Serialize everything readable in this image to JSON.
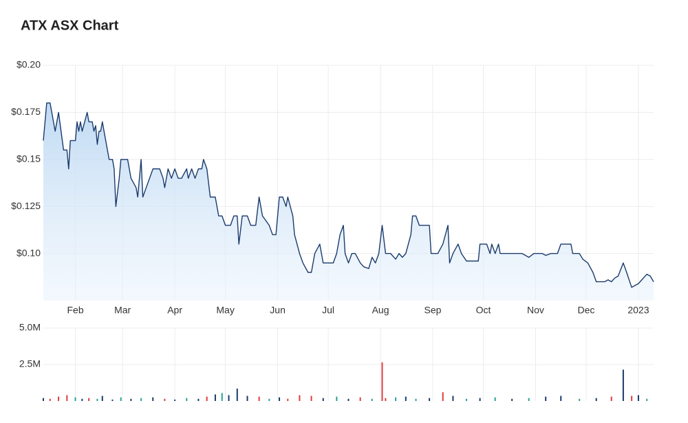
{
  "chart_data": [
    {
      "type": "line",
      "title": "ATX ASX Chart",
      "x": [
        12,
        14,
        16,
        19,
        21,
        24,
        26,
        27,
        28,
        31,
        32,
        33,
        34,
        35,
        38,
        39,
        41,
        42,
        43,
        44,
        45,
        46,
        47,
        48,
        51,
        53,
        54,
        55,
        57,
        58,
        62,
        64,
        67,
        68,
        70,
        71,
        73,
        75,
        77,
        81,
        83,
        84,
        86,
        88,
        90,
        92,
        94,
        97,
        98,
        100,
        102,
        104,
        106,
        107,
        109,
        111,
        114,
        116,
        118,
        120,
        123,
        125,
        127,
        128,
        130,
        133,
        135,
        138,
        140,
        142,
        146,
        148,
        150,
        152,
        154,
        156,
        157,
        160,
        161,
        164,
        166,
        169,
        171,
        173,
        176,
        178,
        181,
        184,
        186,
        188,
        190,
        191,
        193,
        195,
        197,
        200,
        202,
        205,
        207,
        209,
        211,
        213,
        215,
        218,
        221,
        223,
        225,
        227,
        230,
        231,
        233,
        235,
        241,
        242,
        246,
        249,
        252,
        253,
        255,
        258,
        260,
        263,
        270,
        271,
        275,
        277,
        278,
        280,
        282,
        283,
        288,
        296,
        300,
        303,
        308,
        310,
        313,
        315,
        317,
        319,
        325,
        326,
        330,
        332,
        335,
        338,
        340,
        345,
        347,
        349,
        351,
        353,
        356,
        358,
        361,
        365,
        370,
        372,
        374
      ],
      "series": [
        {
          "color": "#1a3a6b",
          "values": [
            0.16,
            0.18,
            0.18,
            0.165,
            0.175,
            0.155,
            0.155,
            0.145,
            0.16,
            0.16,
            0.17,
            0.165,
            0.17,
            0.165,
            0.175,
            0.17,
            0.17,
            0.165,
            0.168,
            0.158,
            0.165,
            0.165,
            0.17,
            0.165,
            0.15,
            0.15,
            0.145,
            0.125,
            0.14,
            0.15,
            0.15,
            0.14,
            0.135,
            0.13,
            0.15,
            0.13,
            0.135,
            0.14,
            0.145,
            0.145,
            0.14,
            0.135,
            0.145,
            0.14,
            0.145,
            0.14,
            0.14,
            0.145,
            0.14,
            0.145,
            0.14,
            0.145,
            0.145,
            0.15,
            0.145,
            0.13,
            0.13,
            0.12,
            0.12,
            0.115,
            0.115,
            0.12,
            0.12,
            0.105,
            0.12,
            0.12,
            0.115,
            0.115,
            0.13,
            0.12,
            0.115,
            0.11,
            0.11,
            0.13,
            0.13,
            0.125,
            0.13,
            0.12,
            0.11,
            0.1,
            0.095,
            0.09,
            0.09,
            0.1,
            0.105,
            0.095,
            0.095,
            0.095,
            0.1,
            0.11,
            0.115,
            0.1,
            0.095,
            0.1,
            0.1,
            0.095,
            0.093,
            0.092,
            0.098,
            0.095,
            0.1,
            0.115,
            0.1,
            0.1,
            0.097,
            0.1,
            0.098,
            0.1,
            0.11,
            0.12,
            0.12,
            0.115,
            0.115,
            0.1,
            0.1,
            0.105,
            0.115,
            0.095,
            0.1,
            0.105,
            0.1,
            0.096,
            0.096,
            0.105,
            0.105,
            0.1,
            0.105,
            0.1,
            0.105,
            0.1,
            0.1,
            0.1,
            0.098,
            0.1,
            0.1,
            0.099,
            0.1,
            0.1,
            0.1,
            0.105,
            0.105,
            0.1,
            0.1,
            0.097,
            0.095,
            0.09,
            0.085,
            0.085,
            0.086,
            0.085,
            0.087,
            0.088,
            0.095,
            0.09,
            0.082,
            0.084,
            0.089,
            0.088,
            0.085
          ]
        }
      ],
      "xlim": [
        12,
        374
      ],
      "xticks": [
        {
          "value": 31,
          "label": "Feb"
        },
        {
          "value": 59,
          "label": "Mar"
        },
        {
          "value": 90,
          "label": "Apr"
        },
        {
          "value": 120,
          "label": "May"
        },
        {
          "value": 151,
          "label": "Jun"
        },
        {
          "value": 181,
          "label": "Jul"
        },
        {
          "value": 212,
          "label": "Aug"
        },
        {
          "value": 243,
          "label": "Sep"
        },
        {
          "value": 273,
          "label": "Oct"
        },
        {
          "value": 304,
          "label": "Nov"
        },
        {
          "value": 334,
          "label": "Dec"
        },
        {
          "value": 365,
          "label": "2023"
        }
      ],
      "ylim": [
        0.075,
        0.2
      ],
      "yticks": [
        {
          "value": 0.1,
          "label": "$0.10"
        },
        {
          "value": 0.125,
          "label": "$0.125"
        },
        {
          "value": 0.15,
          "label": "$0.15"
        },
        {
          "value": 0.175,
          "label": "$0.175"
        },
        {
          "value": 0.2,
          "label": "$0.20"
        }
      ],
      "grid": true
    },
    {
      "type": "bar",
      "x": [
        12,
        16,
        21,
        26,
        31,
        35,
        39,
        44,
        47,
        53,
        58,
        64,
        70,
        77,
        84,
        90,
        97,
        104,
        109,
        114,
        118,
        122,
        127,
        133,
        140,
        146,
        152,
        157,
        164,
        171,
        178,
        186,
        193,
        200,
        207,
        213,
        215,
        221,
        227,
        233,
        241,
        249,
        255,
        263,
        271,
        280,
        290,
        300,
        310,
        319,
        330,
        340,
        349,
        356,
        361,
        365,
        370
      ],
      "values": [
        200000,
        150000,
        300000,
        400000,
        250000,
        150000,
        200000,
        150000,
        350000,
        100000,
        250000,
        150000,
        200000,
        250000,
        150000,
        100000,
        200000,
        150000,
        300000,
        450000,
        550000,
        400000,
        850000,
        350000,
        300000,
        150000,
        250000,
        150000,
        400000,
        350000,
        200000,
        300000,
        150000,
        250000,
        150000,
        2650000,
        200000,
        250000,
        300000,
        150000,
        200000,
        600000,
        350000,
        150000,
        200000,
        250000,
        150000,
        200000,
        300000,
        350000,
        150000,
        200000,
        300000,
        2150000,
        350000,
        400000,
        150000
      ],
      "colors": [
        "#1a3a6b",
        "#e03c3c",
        "#e03c3c",
        "#e03c3c",
        "#2aa198",
        "#1a3a6b",
        "#e03c3c",
        "#2aa198",
        "#1a3a6b",
        "#1a3a6b",
        "#2aa198",
        "#1a3a6b",
        "#2aa198",
        "#1a3a6b",
        "#e03c3c",
        "#1a3a6b",
        "#2aa198",
        "#1a3a6b",
        "#e03c3c",
        "#1a3a6b",
        "#2aa198",
        "#1a3a6b",
        "#1a3a6b",
        "#1a3a6b",
        "#e03c3c",
        "#2aa198",
        "#1a3a6b",
        "#e03c3c",
        "#e03c3c",
        "#e03c3c",
        "#1a3a6b",
        "#2aa198",
        "#1a3a6b",
        "#e03c3c",
        "#2aa198",
        "#e03c3c",
        "#e03c3c",
        "#2aa198",
        "#1a3a6b",
        "#2aa198",
        "#1a3a6b",
        "#e03c3c",
        "#1a3a6b",
        "#2aa198",
        "#1a3a6b",
        "#2aa198",
        "#1a3a6b",
        "#2aa198",
        "#1a3a6b",
        "#1a3a6b",
        "#2aa198",
        "#1a3a6b",
        "#e03c3c",
        "#1a3a6b",
        "#e03c3c",
        "#1a3a6b",
        "#2aa198"
      ],
      "xlim": [
        12,
        374
      ],
      "ylim": [
        0,
        5000000
      ],
      "yticks": [
        {
          "value": 2500000,
          "label": "2.5M"
        },
        {
          "value": 5000000,
          "label": "5.0M"
        }
      ],
      "grid": true
    }
  ]
}
